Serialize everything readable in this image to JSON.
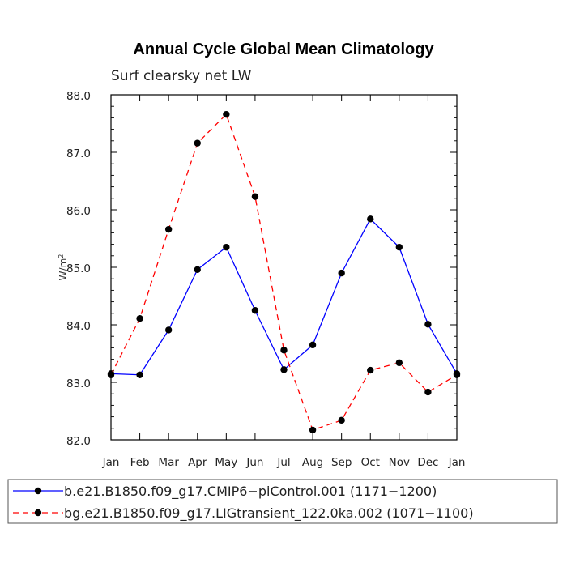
{
  "chart_data": {
    "type": "line",
    "title": "Annual Cycle Global Mean Climatology",
    "subtitle": "Surf clearsky net LW",
    "ylabel": "W/m",
    "ylabel_sup": "2",
    "ylim": [
      82.0,
      88.0
    ],
    "yticks": [
      "82.0",
      "83.0",
      "84.0",
      "85.0",
      "86.0",
      "87.0",
      "88.0"
    ],
    "categories": [
      "Jan",
      "Feb",
      "Mar",
      "Apr",
      "May",
      "Jun",
      "Jul",
      "Aug",
      "Sep",
      "Oct",
      "Nov",
      "Dec",
      "Jan"
    ],
    "grid": false,
    "legend_position": "bottom",
    "series": [
      {
        "name": "b.e21.B1850.f09_g17.CMIP6−piControl.001 (1171−1200)",
        "color": "#0000ff",
        "dash": "solid",
        "values": [
          83.15,
          83.13,
          83.91,
          84.96,
          85.35,
          84.25,
          83.22,
          83.65,
          84.9,
          85.84,
          85.35,
          84.01,
          83.15
        ]
      },
      {
        "name": "bg.e21.B1850.f09_g17.LIGtransient_122.0ka.002 (1071−1100)",
        "color": "#ff0000",
        "dash": "dashed",
        "values": [
          83.13,
          84.11,
          85.66,
          87.16,
          87.66,
          86.23,
          83.56,
          82.17,
          82.34,
          83.21,
          83.34,
          82.83,
          83.13
        ]
      }
    ]
  }
}
